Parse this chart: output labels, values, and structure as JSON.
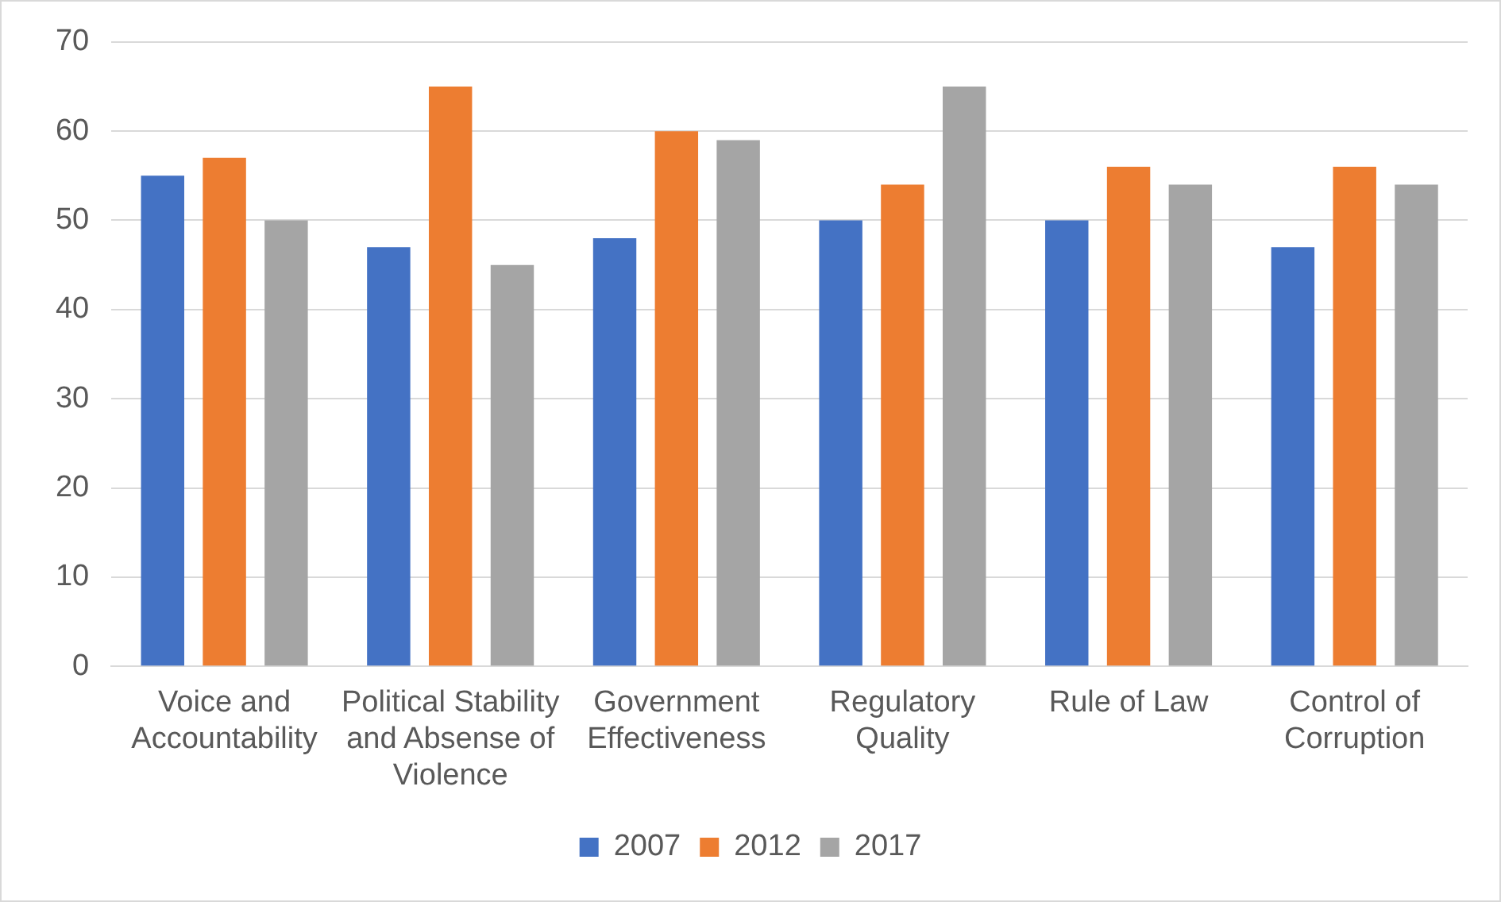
{
  "chart_data": {
    "type": "bar",
    "categories": [
      "Voice and Accountability",
      "Political Stability and Absense of Violence",
      "Government Effectiveness",
      "Regulatory Quality",
      "Rule of Law",
      "Control of Corruption"
    ],
    "series": [
      {
        "name": "2007",
        "color": "#4472c4",
        "values": [
          55,
          47,
          48,
          50,
          50,
          47
        ]
      },
      {
        "name": "2012",
        "color": "#ed7d31",
        "values": [
          57,
          65,
          60,
          54,
          56,
          56
        ]
      },
      {
        "name": "2017",
        "color": "#a5a5a5",
        "values": [
          50,
          45,
          59,
          65,
          54,
          54
        ]
      }
    ],
    "ylim": [
      0,
      70
    ],
    "yticks": [
      0,
      10,
      20,
      30,
      40,
      50,
      60,
      70
    ],
    "grid": "y",
    "legend": "bottom"
  }
}
